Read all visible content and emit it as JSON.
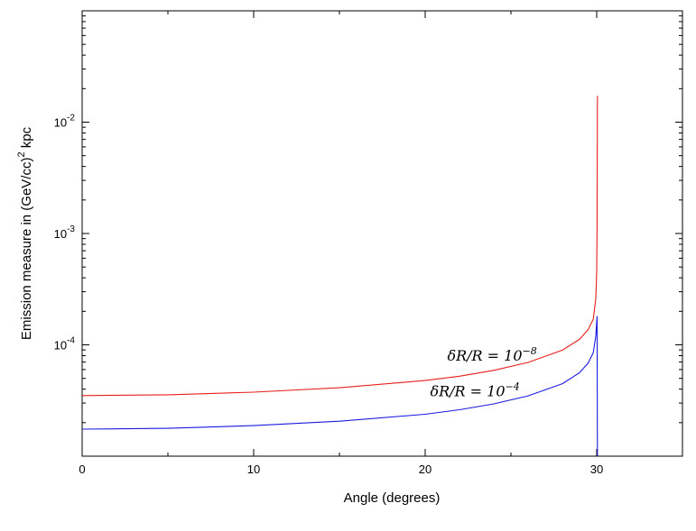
{
  "chart_data": {
    "type": "line",
    "xlabel": "Angle (degrees)",
    "ylabel_text": "Emission measure in (GeV/cc)",
    "ylabel_sup": "2",
    "ylabel_unit": " kpc",
    "xlim": [
      0,
      35
    ],
    "ylim": [
      1e-05,
      0.1
    ],
    "yscale": "log",
    "grid": false,
    "xticks": [
      {
        "value": 0,
        "label": "0"
      },
      {
        "value": 10,
        "label": "10"
      },
      {
        "value": 20,
        "label": "20"
      },
      {
        "value": 30,
        "label": "30"
      }
    ],
    "yticks": [
      {
        "value": 0.0001,
        "base": "10",
        "exp": "-4"
      },
      {
        "value": 0.001,
        "base": "10",
        "exp": "-3"
      },
      {
        "value": 0.01,
        "base": "10",
        "exp": "-2"
      }
    ],
    "series": [
      {
        "color": "#e8201a",
        "x": [
          0,
          5,
          10,
          15,
          20,
          22,
          24,
          26,
          28,
          29,
          29.5,
          29.8,
          29.95,
          30,
          30.02,
          30.04
        ],
        "y": [
          3.5e-05,
          3.56e-05,
          3.76e-05,
          4.12e-05,
          4.78e-05,
          5.23e-05,
          5.9e-05,
          6.95e-05,
          8.95e-05,
          0.000112,
          0.000137,
          0.00017,
          0.00026,
          0.00045,
          0.0012,
          0.0172
        ]
      },
      {
        "color": "#1a1ae0",
        "x": [
          0,
          5,
          10,
          15,
          20,
          22,
          24,
          26,
          28,
          29,
          29.5,
          29.8,
          29.95,
          30.02,
          30.03,
          30.04
        ],
        "y": [
          1.75e-05,
          1.78e-05,
          1.88e-05,
          2.06e-05,
          2.38e-05,
          2.61e-05,
          2.95e-05,
          3.48e-05,
          4.48e-05,
          5.62e-05,
          6.85e-05,
          8.5e-05,
          0.00012,
          0.00018,
          4e-05,
          1.01e-05
        ]
      }
    ],
    "annotations": [
      {
        "lhs": "δR/R = 10",
        "exp": "−8",
        "x": 23.9,
        "y": 7.2e-05
      },
      {
        "lhs": "δR/R = 10",
        "exp": "−4",
        "x": 22.9,
        "y": 3.45e-05
      }
    ]
  }
}
